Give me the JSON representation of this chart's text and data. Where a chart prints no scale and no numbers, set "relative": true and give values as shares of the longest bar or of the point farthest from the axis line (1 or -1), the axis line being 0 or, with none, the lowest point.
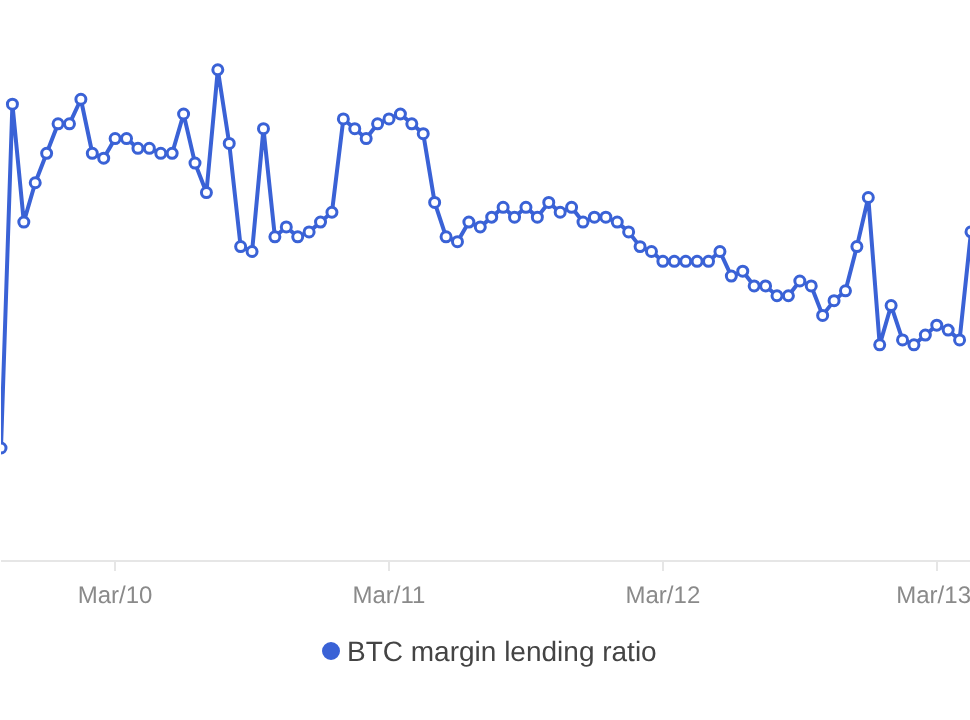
{
  "chart_data": {
    "type": "line",
    "relative": true,
    "marker": "circle",
    "legend": "bottom",
    "grid": false,
    "categories": [
      null,
      null,
      null,
      null,
      null,
      null,
      null,
      null,
      null,
      null,
      "Mar/10",
      null,
      null,
      null,
      null,
      null,
      null,
      null,
      null,
      null,
      null,
      null,
      null,
      null,
      null,
      null,
      null,
      null,
      null,
      null,
      null,
      null,
      null,
      null,
      "Mar/11",
      null,
      null,
      null,
      null,
      null,
      null,
      null,
      null,
      null,
      null,
      null,
      null,
      null,
      null,
      null,
      null,
      null,
      null,
      null,
      null,
      null,
      null,
      null,
      "Mar/12",
      null,
      null,
      null,
      null,
      null,
      null,
      null,
      null,
      null,
      null,
      null,
      null,
      null,
      null,
      null,
      null,
      null,
      null,
      null,
      null,
      null,
      null,
      null,
      "Mar/13",
      null,
      null,
      null
    ],
    "series": [
      {
        "name": "BTC margin lending ratio",
        "color": "#3a62d6",
        "values": [
          0.23,
          0.93,
          0.69,
          0.77,
          0.83,
          0.89,
          0.89,
          0.94,
          0.83,
          0.82,
          0.86,
          0.86,
          0.84,
          0.84,
          0.83,
          0.83,
          0.91,
          0.81,
          0.75,
          1.0,
          0.85,
          0.64,
          0.63,
          0.88,
          0.66,
          0.68,
          0.66,
          0.67,
          0.69,
          0.71,
          0.9,
          0.88,
          0.86,
          0.89,
          0.9,
          0.91,
          0.89,
          0.87,
          0.73,
          0.66,
          0.65,
          0.69,
          0.68,
          0.7,
          0.72,
          0.7,
          0.72,
          0.7,
          0.73,
          0.71,
          0.72,
          0.69,
          0.7,
          0.7,
          0.69,
          0.67,
          0.64,
          0.63,
          0.61,
          0.61,
          0.61,
          0.61,
          0.61,
          0.63,
          0.58,
          0.59,
          0.56,
          0.56,
          0.54,
          0.54,
          0.57,
          0.56,
          0.5,
          0.53,
          0.55,
          0.64,
          0.74,
          0.44,
          0.52,
          0.45,
          0.44,
          0.46,
          0.48,
          0.47,
          0.45,
          0.67
        ]
      }
    ]
  }
}
